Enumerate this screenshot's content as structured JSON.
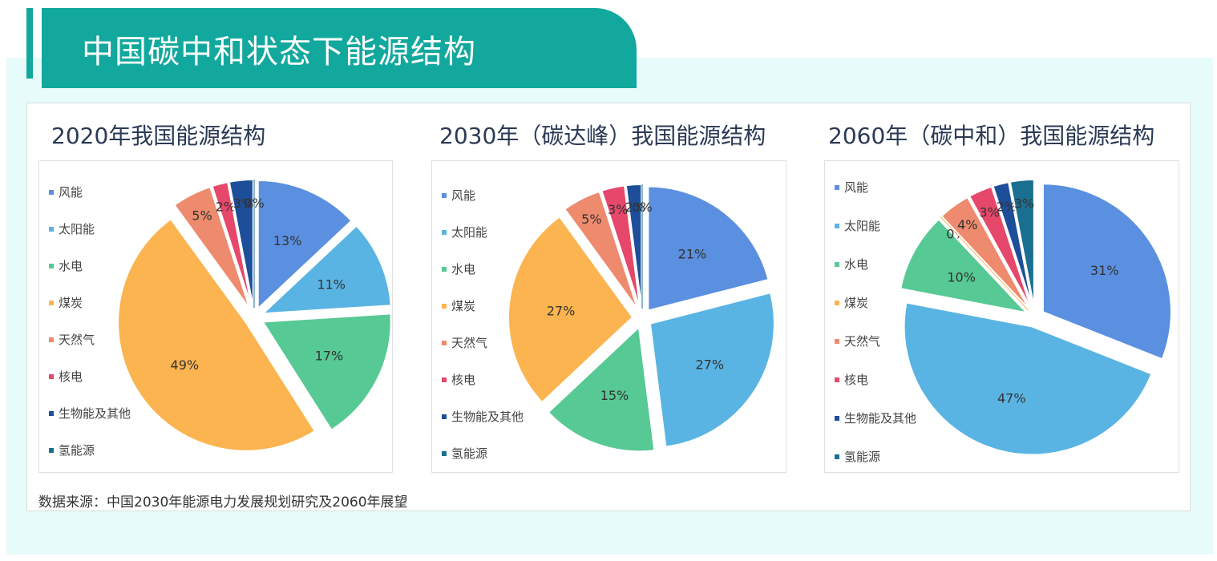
{
  "page": {
    "title": "中国碳中和状态下能源结构",
    "source": "数据来源：中国2030年能源电力发展规划研究及2060年展望"
  },
  "legend": [
    "风能",
    "太阳能",
    "水电",
    "煤炭",
    "天然气",
    "核电",
    "生物能及其他",
    "氢能源"
  ],
  "colors": [
    "#5b8fe0",
    "#5ab4e3",
    "#57c994",
    "#fbb44f",
    "#ee8a6e",
    "#e5486a",
    "#1d4e99",
    "#1a6f91"
  ],
  "chart_data": [
    {
      "type": "pie",
      "title": "2020年我国能源结构",
      "categories": [
        "风能",
        "太阳能",
        "水电",
        "煤炭",
        "天然气",
        "核电",
        "生物能及其他",
        "氢能源"
      ],
      "values": [
        13,
        11,
        17,
        49,
        5,
        2,
        3,
        0
      ],
      "labels": [
        "13%",
        "11%",
        "17%",
        "49%",
        "5%",
        "2%",
        "3%",
        "0%"
      ],
      "exploded": true
    },
    {
      "type": "pie",
      "title": "2030年（碳达峰）我国能源结构",
      "categories": [
        "风能",
        "太阳能",
        "水电",
        "煤炭",
        "天然气",
        "核电",
        "生物能及其他",
        "氢能源"
      ],
      "values": [
        21,
        27,
        15,
        27,
        5,
        3,
        2,
        0
      ],
      "labels": [
        "21%",
        "27%",
        "15%",
        "27%",
        "5%",
        "3%",
        "2%",
        "0%"
      ],
      "exploded": true
    },
    {
      "type": "pie",
      "title": "2060年（碳中和）我国能源结构",
      "categories": [
        "风能",
        "太阳能",
        "水电",
        "煤炭",
        "天然气",
        "核电",
        "生物能及其他",
        "氢能源"
      ],
      "values": [
        31,
        47,
        10,
        0,
        4,
        3,
        2,
        3
      ],
      "labels": [
        "31%",
        "47%",
        "10%",
        "0%",
        "4%",
        "3%",
        "2%",
        "3%"
      ],
      "exploded": true
    }
  ]
}
